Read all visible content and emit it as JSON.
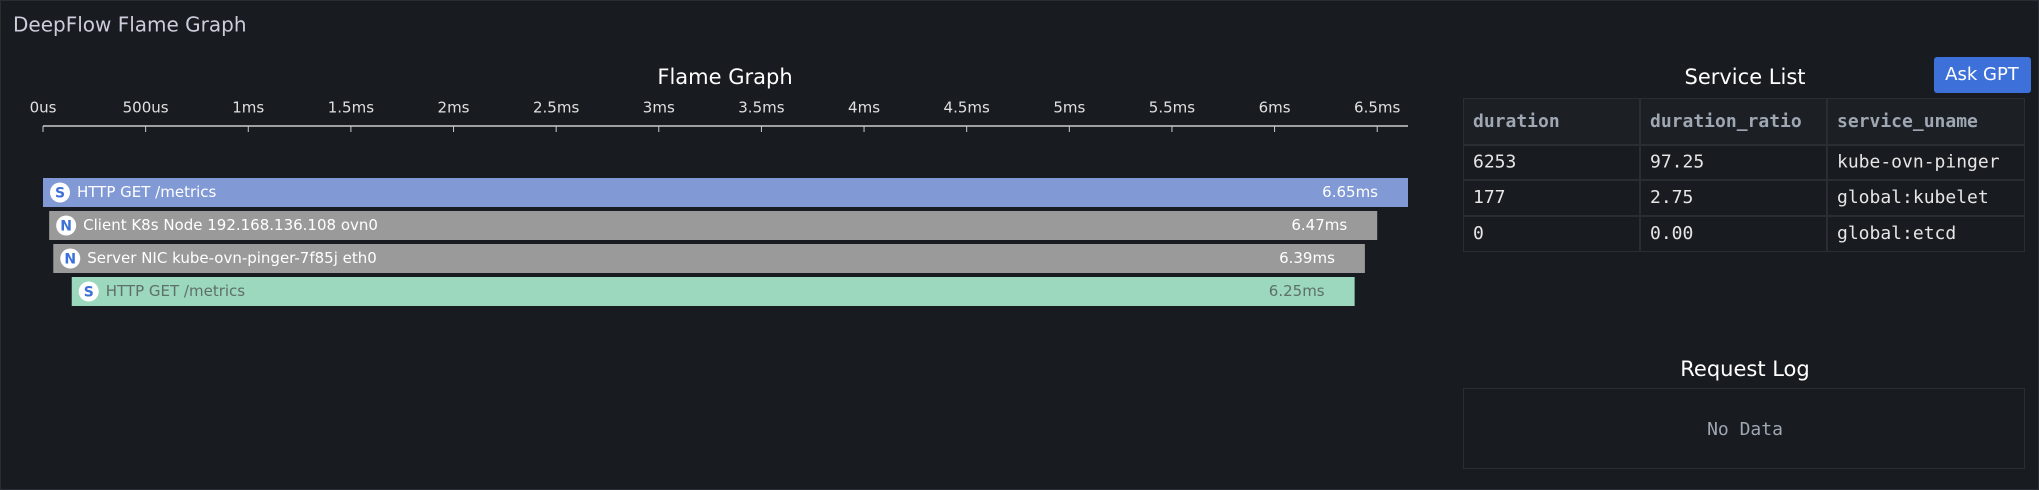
{
  "header": {
    "title": "DeepFlow Flame Graph"
  },
  "flame_graph": {
    "title": "Flame Graph",
    "xlim": [
      0,
      6650
    ],
    "xticks": [
      {
        "value": 0,
        "label": "0us"
      },
      {
        "value": 500,
        "label": "500us"
      },
      {
        "value": 1000,
        "label": "1ms"
      },
      {
        "value": 1500,
        "label": "1.5ms"
      },
      {
        "value": 2000,
        "label": "2ms"
      },
      {
        "value": 2500,
        "label": "2.5ms"
      },
      {
        "value": 3000,
        "label": "3ms"
      },
      {
        "value": 3500,
        "label": "3.5ms"
      },
      {
        "value": 4000,
        "label": "4ms"
      },
      {
        "value": 4500,
        "label": "4.5ms"
      },
      {
        "value": 5000,
        "label": "5ms"
      },
      {
        "value": 5500,
        "label": "5.5ms"
      },
      {
        "value": 6000,
        "label": "6ms"
      },
      {
        "value": 6500,
        "label": "6.5ms"
      }
    ],
    "spans": [
      {
        "icon": "S",
        "label": "HTTP GET /metrics",
        "start": 0,
        "duration": 6650,
        "duration_label": "6.65ms",
        "color": "#8199d4",
        "text_color": "#ffffff"
      },
      {
        "icon": "N",
        "label": "Client K8s Node 192.168.136.108 ovn0",
        "start": 30,
        "duration": 6470,
        "duration_label": "6.47ms",
        "color": "#9a9a9a",
        "text_color": "#ffffff"
      },
      {
        "icon": "N",
        "label": "Server NIC kube-ovn-pinger-7f85j eth0",
        "start": 50,
        "duration": 6390,
        "duration_label": "6.39ms",
        "color": "#9a9a9a",
        "text_color": "#ffffff"
      },
      {
        "icon": "S",
        "label": "HTTP GET /metrics",
        "start": 140,
        "duration": 6250,
        "duration_label": "6.25ms",
        "color": "#9bd8bd",
        "text_color": "#5f6f69"
      }
    ]
  },
  "service_list": {
    "title": "Service List",
    "button": "Ask GPT",
    "columns": [
      "duration",
      "duration_ratio",
      "service_uname"
    ],
    "rows": [
      [
        "6253",
        "97.25",
        "kube-ovn-pinger"
      ],
      [
        "177",
        "2.75",
        "global:kubelet"
      ],
      [
        "0",
        "0.00",
        "global:etcd"
      ]
    ]
  },
  "request_log": {
    "title": "Request Log",
    "empty_text": "No Data"
  }
}
